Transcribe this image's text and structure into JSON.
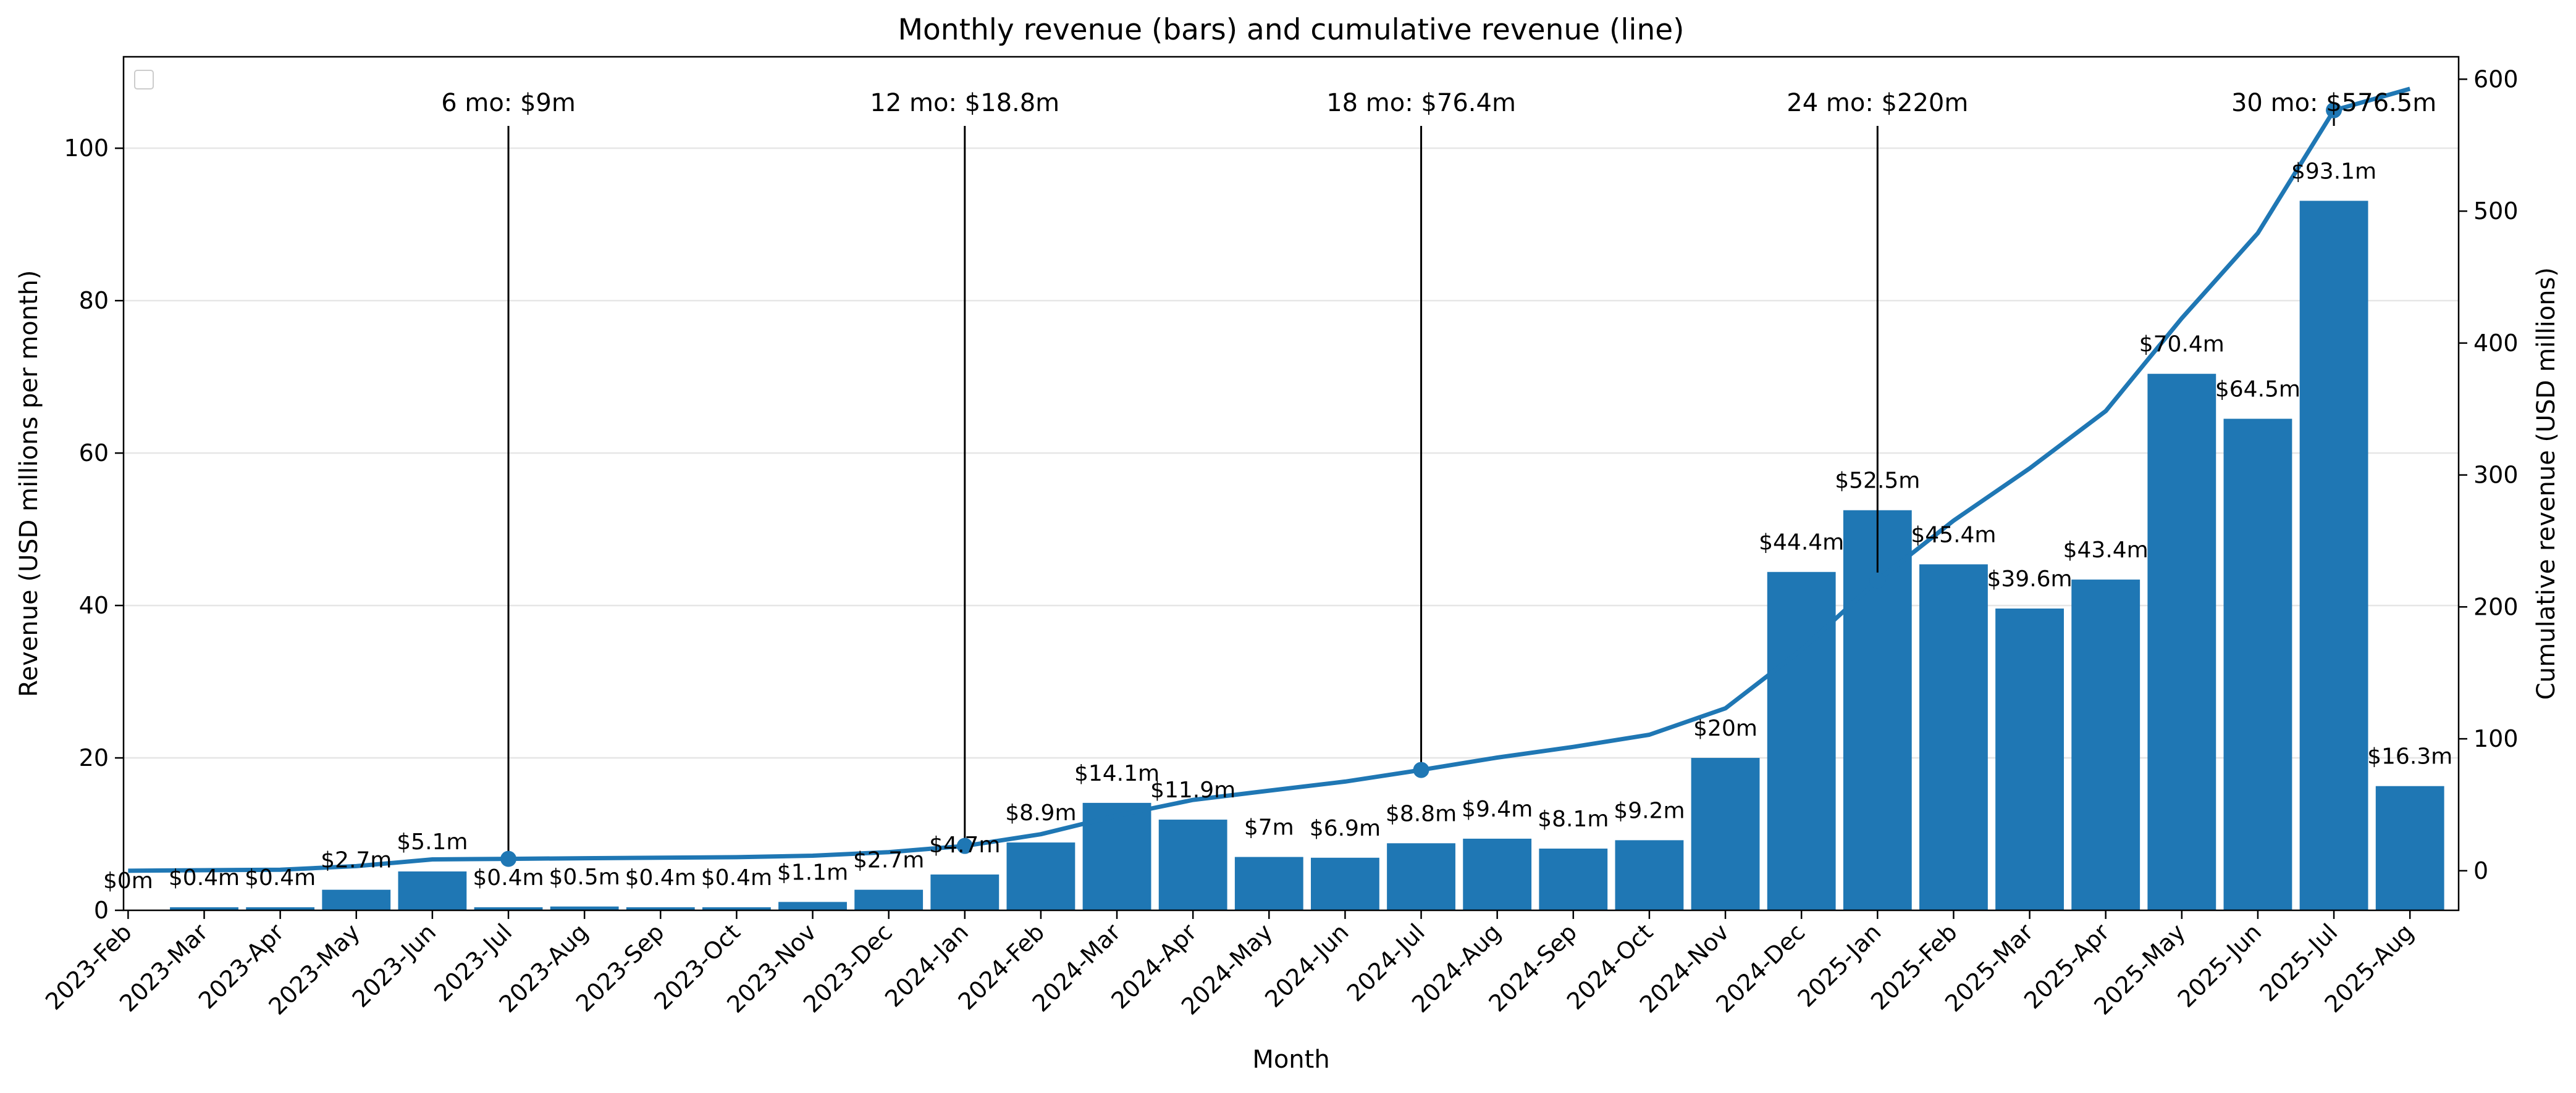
{
  "colors": {
    "bar": "#1f77b4",
    "line": "#1f77b4",
    "annotation_line": "#000000",
    "grid": "#e6e6e6",
    "axis": "#000000"
  },
  "chart_data": {
    "type": "bar",
    "title": "Monthly revenue (bars) and cumulative revenue (line)",
    "xlabel": "Month",
    "ylabel": "Revenue (USD millions per month)",
    "y2label": "Cumulative revenue (USD millions)",
    "ylim": [
      0,
      112
    ],
    "y2lim": [
      -30,
      617
    ],
    "yticks": [
      0,
      20,
      40,
      60,
      80,
      100
    ],
    "y2ticks": [
      0,
      100,
      200,
      300,
      400,
      500,
      600
    ],
    "grid": "horizontal",
    "legend": "top-left (empty)",
    "categories": [
      "2023-Feb",
      "2023-Mar",
      "2023-Apr",
      "2023-May",
      "2023-Jun",
      "2023-Jul",
      "2023-Aug",
      "2023-Sep",
      "2023-Oct",
      "2023-Nov",
      "2023-Dec",
      "2024-Jan",
      "2024-Feb",
      "2024-Mar",
      "2024-Apr",
      "2024-May",
      "2024-Jun",
      "2024-Jul",
      "2024-Aug",
      "2024-Sep",
      "2024-Oct",
      "2024-Nov",
      "2024-Dec",
      "2025-Jan",
      "2025-Feb",
      "2025-Mar",
      "2025-Apr",
      "2025-May",
      "2025-Jun",
      "2025-Jul",
      "2025-Aug"
    ],
    "series": [
      {
        "chart": "bar",
        "axis": "left",
        "values": [
          0,
          0.4,
          0.4,
          2.7,
          5.1,
          0.4,
          0.5,
          0.4,
          0.4,
          1.1,
          2.7,
          4.7,
          8.9,
          14.1,
          11.9,
          7,
          6.9,
          8.8,
          9.4,
          8.1,
          9.2,
          20,
          44.4,
          52.5,
          45.4,
          39.6,
          43.4,
          70.4,
          64.5,
          93.1,
          16.3
        ],
        "labels": [
          "$0m",
          "$0.4m",
          "$0.4m",
          "$2.7m",
          "$5.1m",
          "$0.4m",
          "$0.5m",
          "$0.4m",
          "$0.4m",
          "$1.1m",
          "$2.7m",
          "$4.7m",
          "$8.9m",
          "$14.1m",
          "$11.9m",
          "$7m",
          "$6.9m",
          "$8.8m",
          "$9.4m",
          "$8.1m",
          "$9.2m",
          "$20m",
          "$44.4m",
          "$52.5m",
          "$45.4m",
          "$39.6m",
          "$43.4m",
          "$70.4m",
          "$64.5m",
          "$93.1m",
          "$16.3m"
        ]
      },
      {
        "chart": "line",
        "axis": "right",
        "values": [
          0,
          0.4,
          0.8,
          3.5,
          8.6,
          9,
          9.5,
          9.9,
          10.3,
          11.4,
          14.1,
          18.8,
          27.7,
          41.8,
          53.7,
          60.7,
          67.6,
          76.4,
          85.8,
          93.9,
          103.1,
          123.1,
          167.5,
          220,
          265.4,
          305,
          348.4,
          418.8,
          483.3,
          576.4,
          592.7
        ]
      }
    ],
    "annotations": [
      {
        "index": 5,
        "cumulative": 9,
        "text": "6 mo: $9m"
      },
      {
        "index": 11,
        "cumulative": 18.8,
        "text": "12 mo: $18.8m"
      },
      {
        "index": 17,
        "cumulative": 76.4,
        "text": "18 mo: $76.4m"
      },
      {
        "index": 23,
        "cumulative": 220,
        "text": "24 mo: $220m"
      },
      {
        "index": 29,
        "cumulative": 576.5,
        "text": "30 mo: $576.5m"
      }
    ]
  }
}
